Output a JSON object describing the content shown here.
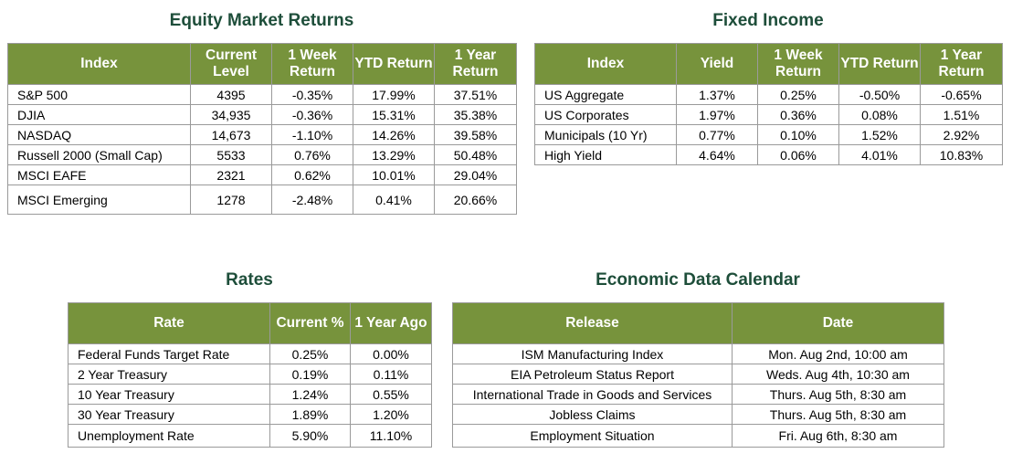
{
  "equity": {
    "title": "Equity Market Returns",
    "headers": [
      "Index",
      "Current Level",
      "1 Week Return",
      "YTD Return",
      "1 Year Return"
    ],
    "rows": [
      [
        "S&P 500",
        "4395",
        "-0.35%",
        "17.99%",
        "37.51%"
      ],
      [
        "DJIA",
        "34,935",
        "-0.36%",
        "15.31%",
        "35.38%"
      ],
      [
        "NASDAQ",
        "14,673",
        "-1.10%",
        "14.26%",
        "39.58%"
      ],
      [
        "Russell 2000 (Small Cap)",
        "5533",
        "0.76%",
        "13.29%",
        "50.48%"
      ],
      [
        "MSCI EAFE",
        "2321",
        "0.62%",
        "10.01%",
        "29.04%"
      ],
      [
        "MSCI Emerging",
        "1278",
        "-2.48%",
        "0.41%",
        "20.66%"
      ]
    ]
  },
  "fixed_income": {
    "title": "Fixed Income",
    "headers": [
      "Index",
      "Yield",
      "1 Week Return",
      "YTD Return",
      "1 Year Return"
    ],
    "rows": [
      [
        "US Aggregate",
        "1.37%",
        "0.25%",
        "-0.50%",
        "-0.65%"
      ],
      [
        "US Corporates",
        "1.97%",
        "0.36%",
        "0.08%",
        "1.51%"
      ],
      [
        "Municipals (10 Yr)",
        "0.77%",
        "0.10%",
        "1.52%",
        "2.92%"
      ],
      [
        "High Yield",
        "4.64%",
        "0.06%",
        "4.01%",
        "10.83%"
      ]
    ]
  },
  "rates": {
    "title": "Rates",
    "headers": [
      "Rate",
      "Current %",
      "1 Year Ago"
    ],
    "rows": [
      [
        "Federal Funds Target Rate",
        "0.25%",
        "0.00%"
      ],
      [
        "2 Year Treasury",
        "0.19%",
        "0.11%"
      ],
      [
        "10 Year Treasury",
        "1.24%",
        "0.55%"
      ],
      [
        "30 Year Treasury",
        "1.89%",
        "1.20%"
      ],
      [
        "Unemployment Rate",
        "5.90%",
        "11.10%"
      ]
    ]
  },
  "calendar": {
    "title": "Economic Data Calendar",
    "headers": [
      "Release",
      "Date"
    ],
    "rows": [
      [
        "ISM Manufacturing Index",
        "Mon. Aug 2nd, 10:00 am"
      ],
      [
        "EIA Petroleum Status Report",
        "Weds. Aug 4th, 10:30 am"
      ],
      [
        "International Trade in Goods and Services",
        "Thurs. Aug 5th, 8:30 am"
      ],
      [
        "Jobless Claims",
        "Thurs. Aug 5th, 8:30 am"
      ],
      [
        "Employment Situation",
        "Fri. Aug 6th, 8:30 am"
      ]
    ]
  },
  "colors": {
    "header_bg": "#77933c",
    "title_text": "#1e4e3a",
    "border": "#9a9a9a"
  }
}
